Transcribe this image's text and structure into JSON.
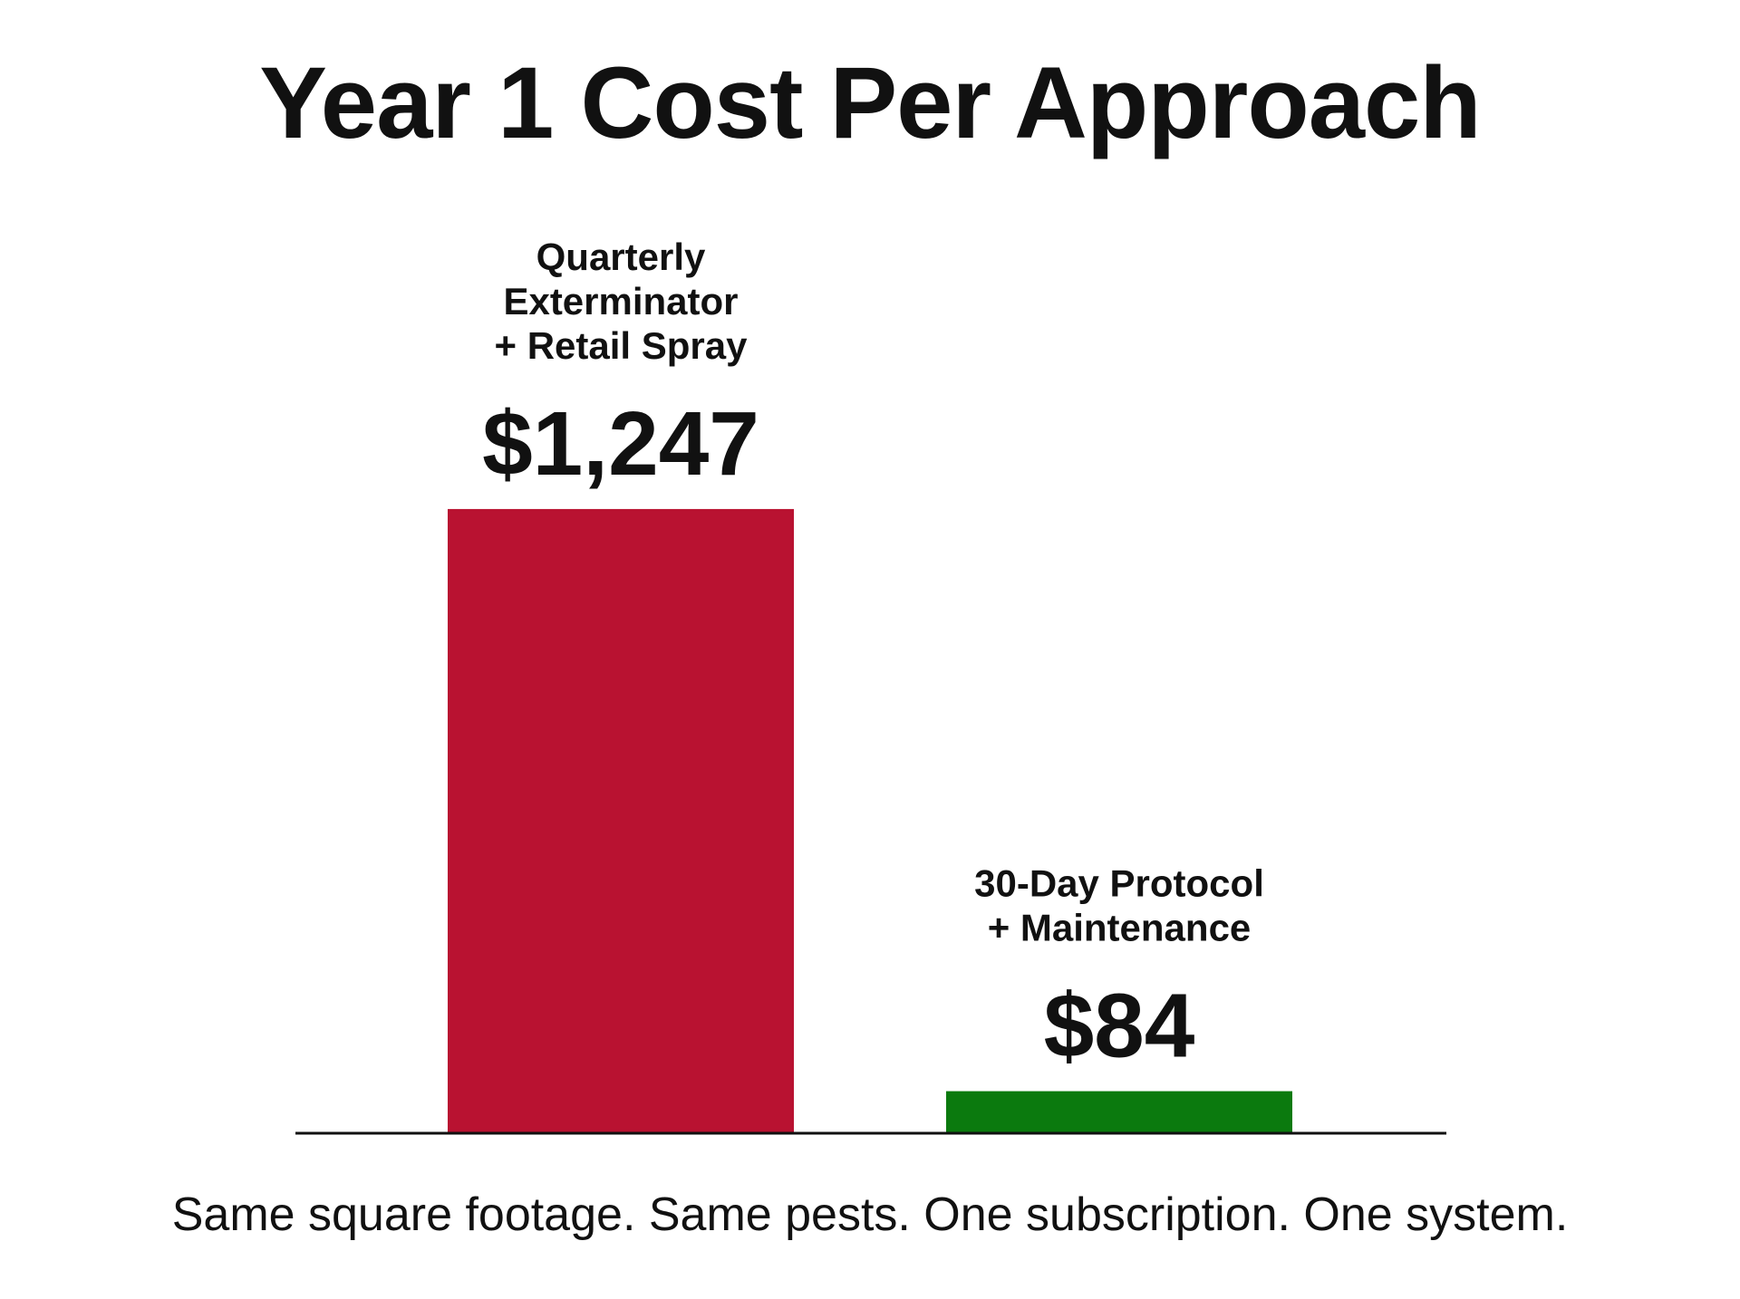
{
  "chart_data": {
    "type": "bar",
    "title": "Year 1 Cost Per Approach",
    "categories": [
      [
        "Quarterly",
        "Exterminator",
        "+ Retail Spray"
      ],
      [
        "30-Day Protocol",
        "+ Maintenance"
      ]
    ],
    "values": [
      1247,
      84
    ],
    "value_labels": [
      "$1,247",
      "$84"
    ],
    "colors": [
      "#b91231",
      "#0b7a0e"
    ],
    "ylim": [
      0,
      1350
    ],
    "grid": false,
    "legend": "none",
    "xlabel": "",
    "ylabel": ""
  },
  "footnote": "Same square footage. Same pests. One subscription. One system."
}
